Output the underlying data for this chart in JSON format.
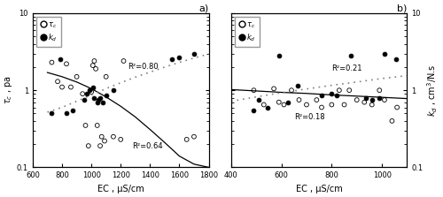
{
  "panel_a": {
    "title": "a)",
    "xlabel": "EC , μS/cm",
    "ylabel_left": "τc , pa",
    "ylabel_right": "kd , cm³/N.s",
    "xlim": [
      600,
      1800
    ],
    "xticks": [
      600,
      800,
      1000,
      1200,
      1400,
      1600,
      1800
    ],
    "ylim": [
      0.1,
      10
    ],
    "tc_x": [
      730,
      770,
      800,
      830,
      860,
      900,
      940,
      960,
      980,
      1000,
      1010,
      1020,
      1030,
      1040,
      1060,
      1070,
      1090,
      1100,
      1150,
      1200,
      1220,
      1650,
      1700
    ],
    "tc_y": [
      2.3,
      1.3,
      1.1,
      2.2,
      1.1,
      1.5,
      0.9,
      0.35,
      0.19,
      0.95,
      2.1,
      2.4,
      1.9,
      0.35,
      0.19,
      0.25,
      0.22,
      1.5,
      0.25,
      0.23,
      2.4,
      0.23,
      0.25
    ],
    "kd_x": [
      730,
      790,
      830,
      870,
      950,
      970,
      990,
      1010,
      1020,
      1040,
      1050,
      1060,
      1080,
      1100,
      1150,
      1550,
      1600,
      1700
    ],
    "kd_y": [
      0.5,
      2.5,
      0.5,
      0.55,
      0.75,
      0.9,
      1.0,
      1.1,
      0.8,
      0.7,
      0.75,
      0.8,
      0.7,
      0.85,
      1.0,
      2.5,
      2.7,
      3.0
    ],
    "r2_kd": "R²=0.80",
    "r2_tc": "R²=0.64",
    "r2_kd_x": 1250,
    "r2_kd_y": 2.0,
    "r2_tc_x": 1280,
    "r2_tc_y": 0.19,
    "tc_trend_x": [
      700,
      800,
      900,
      1000,
      1100,
      1200,
      1300,
      1400,
      1500,
      1600,
      1700,
      1800
    ],
    "tc_trend_y": [
      1.7,
      1.5,
      1.28,
      1.05,
      0.82,
      0.62,
      0.45,
      0.31,
      0.21,
      0.14,
      0.11,
      0.1
    ],
    "kd_trend_x": [
      700,
      800,
      900,
      1000,
      1100,
      1200,
      1300,
      1400,
      1500,
      1600,
      1700,
      1800
    ],
    "kd_trend_y": [
      0.52,
      0.6,
      0.72,
      0.87,
      1.05,
      1.25,
      1.48,
      1.72,
      2.0,
      2.3,
      2.62,
      2.95
    ]
  },
  "panel_b": {
    "title": "b)",
    "xlabel": "EC , μS/cm",
    "ylabel_left": "τc , pa",
    "ylabel_right": "kd , cm³/N.s",
    "xlim": [
      400,
      1100
    ],
    "xticks": [
      400,
      600,
      800,
      1000
    ],
    "ylim": [
      0.1,
      10
    ],
    "tc_x": [
      490,
      530,
      570,
      590,
      610,
      640,
      670,
      700,
      740,
      760,
      800,
      830,
      850,
      870,
      900,
      930,
      960,
      990,
      1010,
      1040,
      1060
    ],
    "tc_y": [
      1.0,
      0.65,
      1.05,
      0.7,
      0.65,
      1.0,
      0.75,
      0.65,
      0.75,
      0.6,
      0.65,
      1.0,
      0.65,
      1.0,
      0.75,
      0.7,
      0.65,
      1.0,
      0.75,
      0.4,
      0.6
    ],
    "kd_x": [
      490,
      510,
      545,
      590,
      625,
      665,
      760,
      800,
      820,
      875,
      935,
      960,
      990,
      1010,
      1055
    ],
    "kd_y": [
      0.55,
      0.75,
      0.6,
      2.8,
      0.7,
      1.15,
      0.85,
      0.9,
      0.85,
      2.8,
      0.8,
      0.75,
      0.8,
      3.0,
      2.5
    ],
    "r2_kd": "R²=0.21",
    "r2_tc": "R²=0.18",
    "r2_kd_x": 800,
    "r2_kd_y": 1.9,
    "r2_tc_x": 650,
    "r2_tc_y": 0.45,
    "tc_trend_x": [
      400,
      500,
      600,
      700,
      800,
      900,
      1000,
      1100
    ],
    "tc_trend_y": [
      1.02,
      0.98,
      0.94,
      0.91,
      0.87,
      0.84,
      0.81,
      0.78
    ],
    "kd_trend_x": [
      400,
      500,
      600,
      700,
      800,
      900,
      1000,
      1100
    ],
    "kd_trend_y": [
      0.72,
      0.82,
      0.93,
      1.04,
      1.16,
      1.28,
      1.42,
      1.55
    ]
  }
}
